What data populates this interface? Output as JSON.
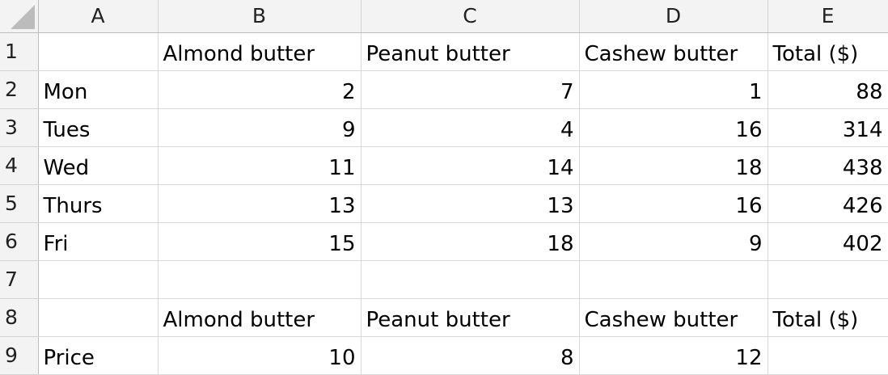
{
  "columns": [
    "A",
    "B",
    "C",
    "D",
    "E"
  ],
  "rows": [
    {
      "num": "1",
      "cells": [
        "",
        "Almond butter",
        "Peanut butter",
        "Cashew butter",
        "Total ($)"
      ]
    },
    {
      "num": "2",
      "cells": [
        "Mon",
        "2",
        "7",
        "1",
        "88"
      ]
    },
    {
      "num": "3",
      "cells": [
        "Tues",
        "9",
        "4",
        "16",
        "314"
      ]
    },
    {
      "num": "4",
      "cells": [
        "Wed",
        "11",
        "14",
        "18",
        "438"
      ]
    },
    {
      "num": "5",
      "cells": [
        "Thurs",
        "13",
        "13",
        "16",
        "426"
      ]
    },
    {
      "num": "6",
      "cells": [
        "Fri",
        "15",
        "18",
        "9",
        "402"
      ]
    },
    {
      "num": "7",
      "cells": [
        "",
        "",
        "",
        "",
        ""
      ]
    },
    {
      "num": "8",
      "cells": [
        "",
        "Almond butter",
        "Peanut butter",
        "Cashew butter",
        "Total ($)"
      ]
    },
    {
      "num": "9",
      "cells": [
        "Price",
        "10",
        "8",
        "12",
        ""
      ]
    }
  ]
}
